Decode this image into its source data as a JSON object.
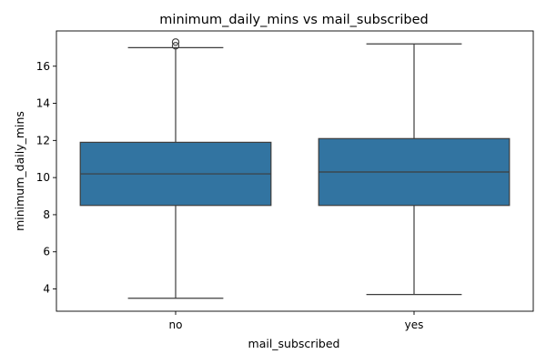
{
  "chart_data": {
    "type": "box",
    "title": "minimum_daily_mins vs mail_subscribed",
    "xlabel": "mail_subscribed",
    "ylabel": "minimum_daily_mins",
    "categories": [
      "no",
      "yes"
    ],
    "ylim": [
      2.8,
      17.9
    ],
    "yticks": [
      4,
      6,
      8,
      10,
      12,
      14,
      16
    ],
    "grid": false,
    "boxes": [
      {
        "category": "no",
        "whisker_low": 3.5,
        "q1": 8.5,
        "median": 10.2,
        "q3": 11.9,
        "whisker_high": 17.0,
        "outliers": [
          17.1,
          17.3
        ]
      },
      {
        "category": "yes",
        "whisker_low": 3.7,
        "q1": 8.5,
        "median": 10.3,
        "q3": 12.1,
        "whisker_high": 17.2,
        "outliers": []
      }
    ],
    "box_color": "#3274a1",
    "line_color": "#3d3d3d"
  }
}
